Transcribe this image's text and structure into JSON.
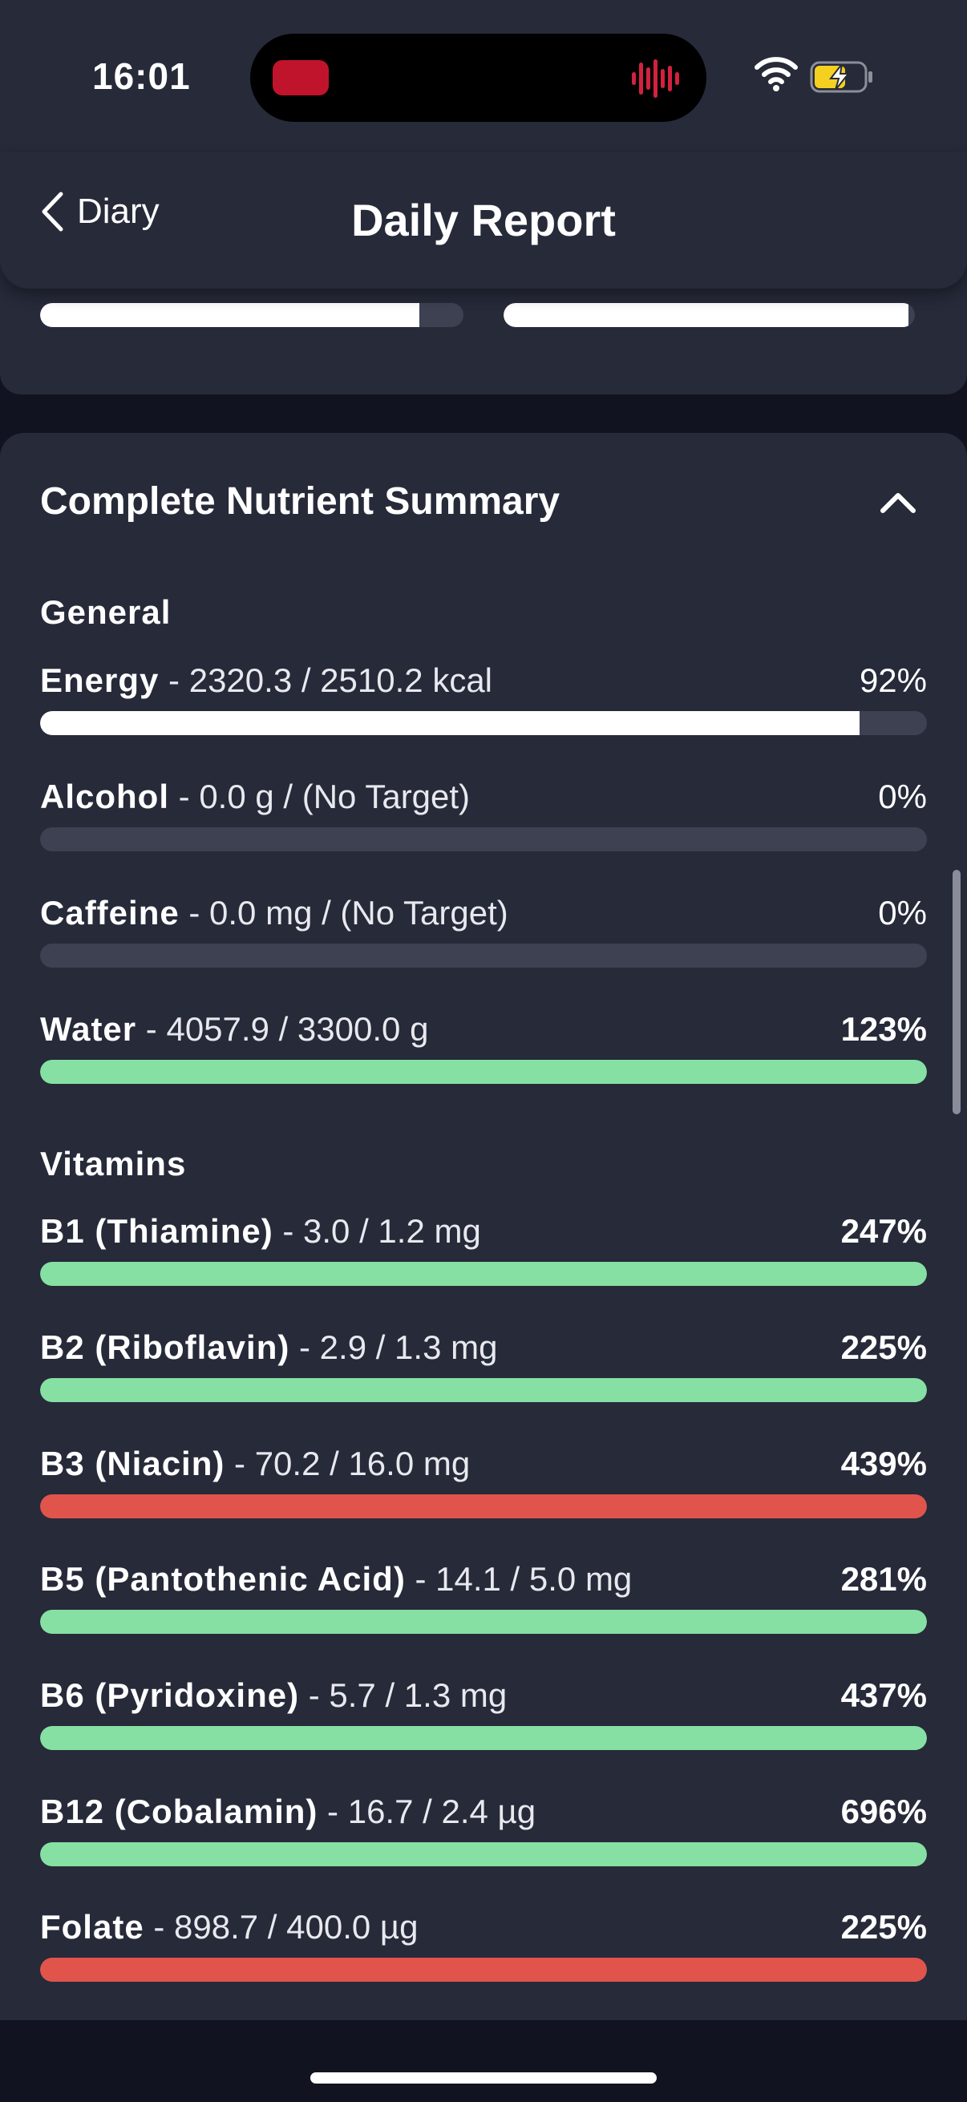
{
  "status_bar": {
    "time": "16:01"
  },
  "nav": {
    "back_label": "Diary",
    "title": "Daily Report"
  },
  "top_bars": [
    {
      "fraction": 0.895
    },
    {
      "fraction": 0.985
    }
  ],
  "summary": {
    "title": "Complete Nutrient Summary",
    "sections": [
      {
        "label": "General"
      },
      {
        "label": "Vitamins"
      }
    ],
    "rows": [
      {
        "name": "Energy",
        "detail": " - 2320.3 / 2510.2 kcal",
        "percent": "92%",
        "fraction": 0.924,
        "color": "#ffffff",
        "bold_pct": false
      },
      {
        "name": "Alcohol",
        "detail": " - 0.0 g / (No Target)",
        "percent": "0%",
        "fraction": 0,
        "color": "#ffffff",
        "bold_pct": false
      },
      {
        "name": "Caffeine",
        "detail": " - 0.0 mg / (No Target)",
        "percent": "0%",
        "fraction": 0,
        "color": "#ffffff",
        "bold_pct": false
      },
      {
        "name": "Water",
        "detail": " - 4057.9 / 3300.0 g",
        "percent": "123%",
        "fraction": 1,
        "color": "#86e0a3",
        "bold_pct": true
      },
      {
        "name": "B1 (Thiamine)",
        "detail": " - 3.0 / 1.2 mg",
        "percent": "247%",
        "fraction": 1,
        "color": "#86e0a3",
        "bold_pct": true
      },
      {
        "name": "B2 (Riboflavin)",
        "detail": " - 2.9 / 1.3 mg",
        "percent": "225%",
        "fraction": 1,
        "color": "#86e0a3",
        "bold_pct": true
      },
      {
        "name": "B3 (Niacin)",
        "detail": " - 70.2 / 16.0 mg",
        "percent": "439%",
        "fraction": 1,
        "color": "#e0544c",
        "bold_pct": true
      },
      {
        "name": "B5 (Pantothenic Acid)",
        "detail": " - 14.1 / 5.0 mg",
        "percent": "281%",
        "fraction": 1,
        "color": "#86e0a3",
        "bold_pct": true
      },
      {
        "name": "B6 (Pyridoxine)",
        "detail": " - 5.7 / 1.3 mg",
        "percent": "437%",
        "fraction": 1,
        "color": "#86e0a3",
        "bold_pct": true
      },
      {
        "name": "B12 (Cobalamin)",
        "detail": " - 16.7 / 2.4 µg",
        "percent": "696%",
        "fraction": 1,
        "color": "#86e0a3",
        "bold_pct": true
      },
      {
        "name": "Folate",
        "detail": " - 898.7 / 400.0 µg",
        "percent": "225%",
        "fraction": 1,
        "color": "#e0544c",
        "bold_pct": true
      }
    ]
  },
  "icons": {
    "back": "chevron-left-icon",
    "collapse": "chevron-up-icon",
    "wifi": "wifi-icon",
    "battery": "battery-charging-icon"
  }
}
